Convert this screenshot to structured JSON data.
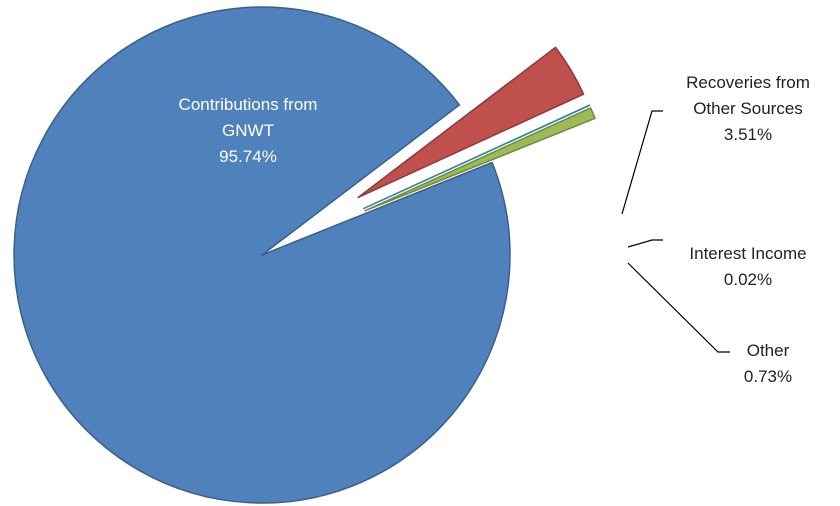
{
  "chart_data": {
    "type": "pie",
    "title": "",
    "slices": [
      {
        "label_lines": [
          "Contributions from",
          "GNWT"
        ],
        "percent_label": "95.74%",
        "value": 95.74,
        "color": "#4F81BD",
        "label_color": "#ffffff"
      },
      {
        "label_lines": [
          "Recoveries from",
          "Other Sources"
        ],
        "percent_label": "3.51%",
        "value": 3.51,
        "color": "#C0504D",
        "label_color": "#222222"
      },
      {
        "label_lines": [
          "Interest Income"
        ],
        "percent_label": "0.02%",
        "value": 0.02,
        "color": "#4BACC6",
        "label_color": "#222222"
      },
      {
        "label_lines": [
          "Other"
        ],
        "percent_label": "0.73%",
        "value": 0.73,
        "color": "#9BBB59",
        "label_color": "#222222"
      }
    ],
    "legend": "none",
    "exploded": true
  }
}
